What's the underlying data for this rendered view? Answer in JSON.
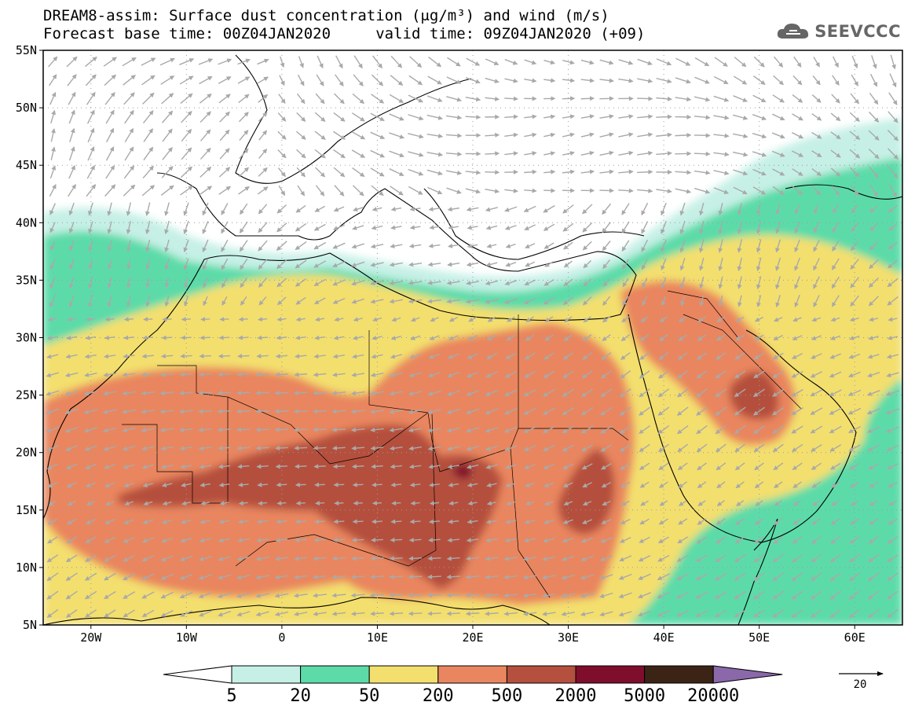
{
  "header": {
    "title_line1": "DREAM8-assim: Surface dust concentration (μg/m³) and wind (m/s)",
    "title_line2": "Forecast base time: 00Z04JAN2020     valid time: 09Z04JAN2020 (+09)"
  },
  "logo": {
    "text": "SEEVCCC",
    "icon": "cloud-icon"
  },
  "map": {
    "lat_labels": [
      "55N",
      "50N",
      "45N",
      "40N",
      "35N",
      "30N",
      "25N",
      "20N",
      "15N",
      "10N",
      "5N"
    ],
    "lon_labels": [
      "20W",
      "10W",
      "0",
      "10E",
      "20E",
      "30E",
      "40E",
      "50E",
      "60E"
    ],
    "lat_range": [
      5,
      55
    ],
    "lon_range": [
      -25,
      65
    ],
    "grid": "dotted"
  },
  "colorbar": {
    "labels": [
      "5",
      "20",
      "50",
      "200",
      "500",
      "2000",
      "5000",
      "20000"
    ],
    "colors": [
      "#c6f0e6",
      "#5cdba9",
      "#f3df6e",
      "#e9865f",
      "#b5503e",
      "#7f0e2c",
      "#3b2316"
    ],
    "under_color": "#ffffff",
    "over_color": "#8a68a9",
    "units": "μg/m³"
  },
  "wind_reference": {
    "label": "20"
  },
  "colors": {
    "arrow": "#a9a9a9",
    "coast": "#000000"
  }
}
